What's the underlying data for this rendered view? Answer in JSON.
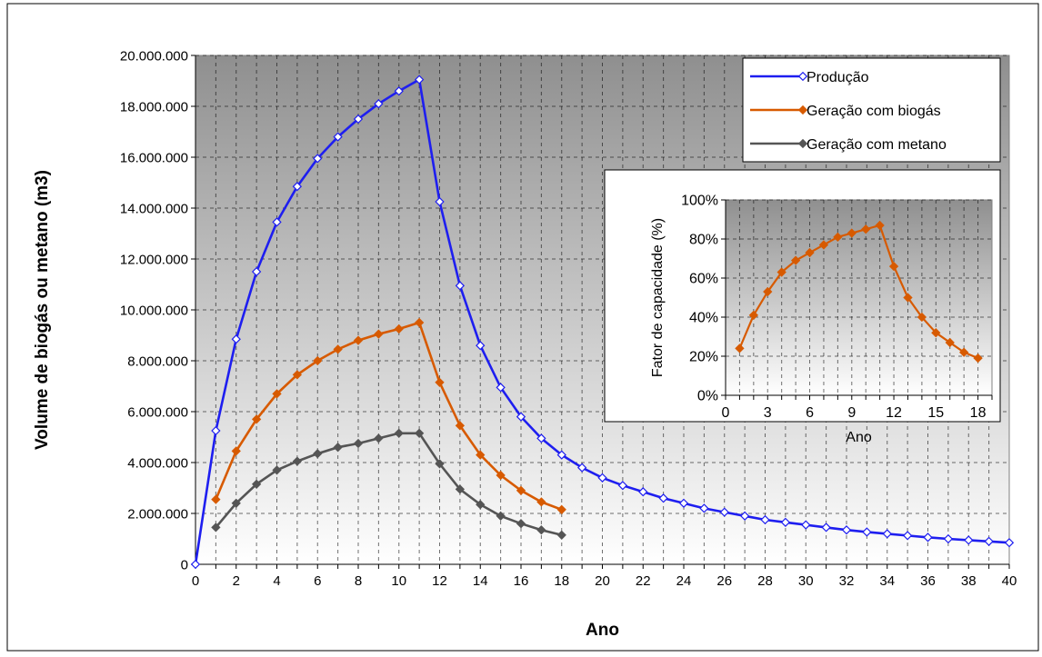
{
  "chart_data": [
    {
      "type": "line",
      "xlabel": "Ano",
      "ylabel": "Volume de biogás ou metano (m3)",
      "xlim": [
        0,
        40
      ],
      "ylim": [
        0,
        20000000
      ],
      "x_ticks": [
        0,
        2,
        4,
        6,
        8,
        10,
        12,
        14,
        16,
        18,
        20,
        22,
        24,
        26,
        28,
        30,
        32,
        34,
        36,
        38,
        40
      ],
      "y_ticks": [
        0,
        2000000,
        4000000,
        6000000,
        8000000,
        10000000,
        12000000,
        14000000,
        16000000,
        18000000,
        20000000
      ],
      "y_tick_labels": [
        "0",
        "2.000.000",
        "4.000.000",
        "6.000.000",
        "8.000.000",
        "10.000.000",
        "12.000.000",
        "14.000.000",
        "16.000.000",
        "18.000.000",
        "20.000.000"
      ],
      "grid": true,
      "legend_position": "top-right",
      "series": [
        {
          "name": "Produção",
          "color": "#1e1ef0",
          "marker": "diamond-open",
          "x": [
            0,
            1,
            2,
            3,
            4,
            5,
            6,
            7,
            8,
            9,
            10,
            11,
            12,
            13,
            14,
            15,
            16,
            17,
            18,
            19,
            20,
            21,
            22,
            23,
            24,
            25,
            26,
            27,
            28,
            29,
            30,
            31,
            32,
            33,
            34,
            35,
            36,
            37,
            38,
            39,
            40
          ],
          "y": [
            0,
            5250000,
            8850000,
            11500000,
            13450000,
            14850000,
            15950000,
            16800000,
            17500000,
            18100000,
            18600000,
            19050000,
            14250000,
            10950000,
            8600000,
            6950000,
            5800000,
            4950000,
            4300000,
            3800000,
            3400000,
            3100000,
            2850000,
            2600000,
            2400000,
            2200000,
            2050000,
            1900000,
            1750000,
            1650000,
            1550000,
            1450000,
            1350000,
            1270000,
            1200000,
            1130000,
            1060000,
            1000000,
            950000,
            900000,
            850000
          ]
        },
        {
          "name": "Geração com biogás",
          "color": "#d75a00",
          "marker": "diamond",
          "x": [
            1,
            2,
            3,
            4,
            5,
            6,
            7,
            8,
            9,
            10,
            11,
            12,
            13,
            14,
            15,
            16,
            17,
            18
          ],
          "y": [
            2550000,
            4450000,
            5700000,
            6700000,
            7450000,
            8000000,
            8450000,
            8800000,
            9050000,
            9250000,
            9500000,
            7150000,
            5450000,
            4300000,
            3500000,
            2900000,
            2450000,
            2150000
          ]
        },
        {
          "name": "Geração com metano",
          "color": "#555555",
          "marker": "diamond",
          "x": [
            1,
            2,
            3,
            4,
            5,
            6,
            7,
            8,
            9,
            10,
            11,
            12,
            13,
            14,
            15,
            16,
            17,
            18
          ],
          "y": [
            1450000,
            2400000,
            3150000,
            3700000,
            4050000,
            4350000,
            4600000,
            4750000,
            4950000,
            5150000,
            5150000,
            3950000,
            2950000,
            2350000,
            1900000,
            1600000,
            1350000,
            1150000
          ]
        }
      ]
    },
    {
      "type": "line",
      "xlabel": "Ano",
      "ylabel": "Fator de capacidade (%)",
      "xlim": [
        0,
        19
      ],
      "ylim": [
        0,
        100
      ],
      "x_ticks": [
        0,
        3,
        6,
        9,
        12,
        15,
        18
      ],
      "y_ticks": [
        0,
        20,
        40,
        60,
        80,
        100
      ],
      "y_tick_labels": [
        "0%",
        "20%",
        "40%",
        "60%",
        "80%",
        "100%"
      ],
      "grid": true,
      "legend_position": "none",
      "series": [
        {
          "color": "#d75a00",
          "marker": "diamond",
          "x": [
            1,
            2,
            3,
            4,
            5,
            6,
            7,
            8,
            9,
            10,
            11,
            12,
            13,
            14,
            15,
            16,
            17,
            18
          ],
          "y": [
            24,
            41,
            53,
            63,
            69,
            73,
            77,
            81,
            83,
            85,
            87,
            66,
            50,
            40,
            32,
            27,
            22,
            19
          ]
        }
      ]
    }
  ]
}
